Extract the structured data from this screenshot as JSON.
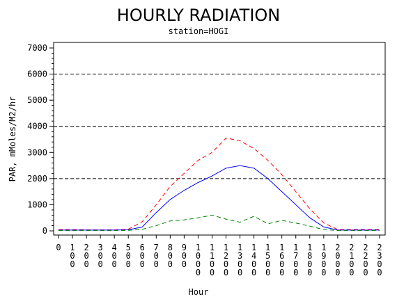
{
  "chart_data": {
    "type": "line",
    "title": "HOURLY RADIATION",
    "subtitle": "station=HOGI",
    "xlabel": "Hour",
    "ylabel": "PAR, mMoles/M2/hr",
    "x": [
      0,
      100,
      200,
      300,
      400,
      500,
      600,
      700,
      800,
      900,
      1000,
      1100,
      1200,
      1300,
      1400,
      1500,
      1600,
      1700,
      1800,
      1900,
      2000,
      2100,
      2200,
      2300
    ],
    "xlim": [
      0,
      2300
    ],
    "ylim": [
      0,
      7000
    ],
    "y_ticks": [
      0,
      1000,
      2000,
      3000,
      4000,
      5000,
      6000,
      7000
    ],
    "reference_lines": [
      2000,
      4000,
      6000
    ],
    "series": [
      {
        "color": "#ff0000",
        "dash": "dashed",
        "values": [
          50,
          50,
          40,
          40,
          40,
          60,
          350,
          1000,
          1700,
          2200,
          2700,
          3000,
          3550,
          3450,
          3150,
          2700,
          2150,
          1500,
          850,
          300,
          50,
          50,
          50,
          50
        ]
      },
      {
        "color": "#0000ff",
        "dash": "solid",
        "values": [
          30,
          30,
          30,
          30,
          30,
          40,
          150,
          700,
          1200,
          1550,
          1850,
          2100,
          2400,
          2500,
          2400,
          2000,
          1500,
          1000,
          500,
          150,
          30,
          30,
          30,
          30
        ]
      },
      {
        "color": "#008000",
        "dash": "dashed",
        "values": [
          10,
          10,
          10,
          10,
          10,
          20,
          60,
          200,
          380,
          420,
          500,
          600,
          450,
          330,
          560,
          270,
          400,
          300,
          180,
          50,
          10,
          10,
          10,
          10
        ]
      }
    ]
  }
}
